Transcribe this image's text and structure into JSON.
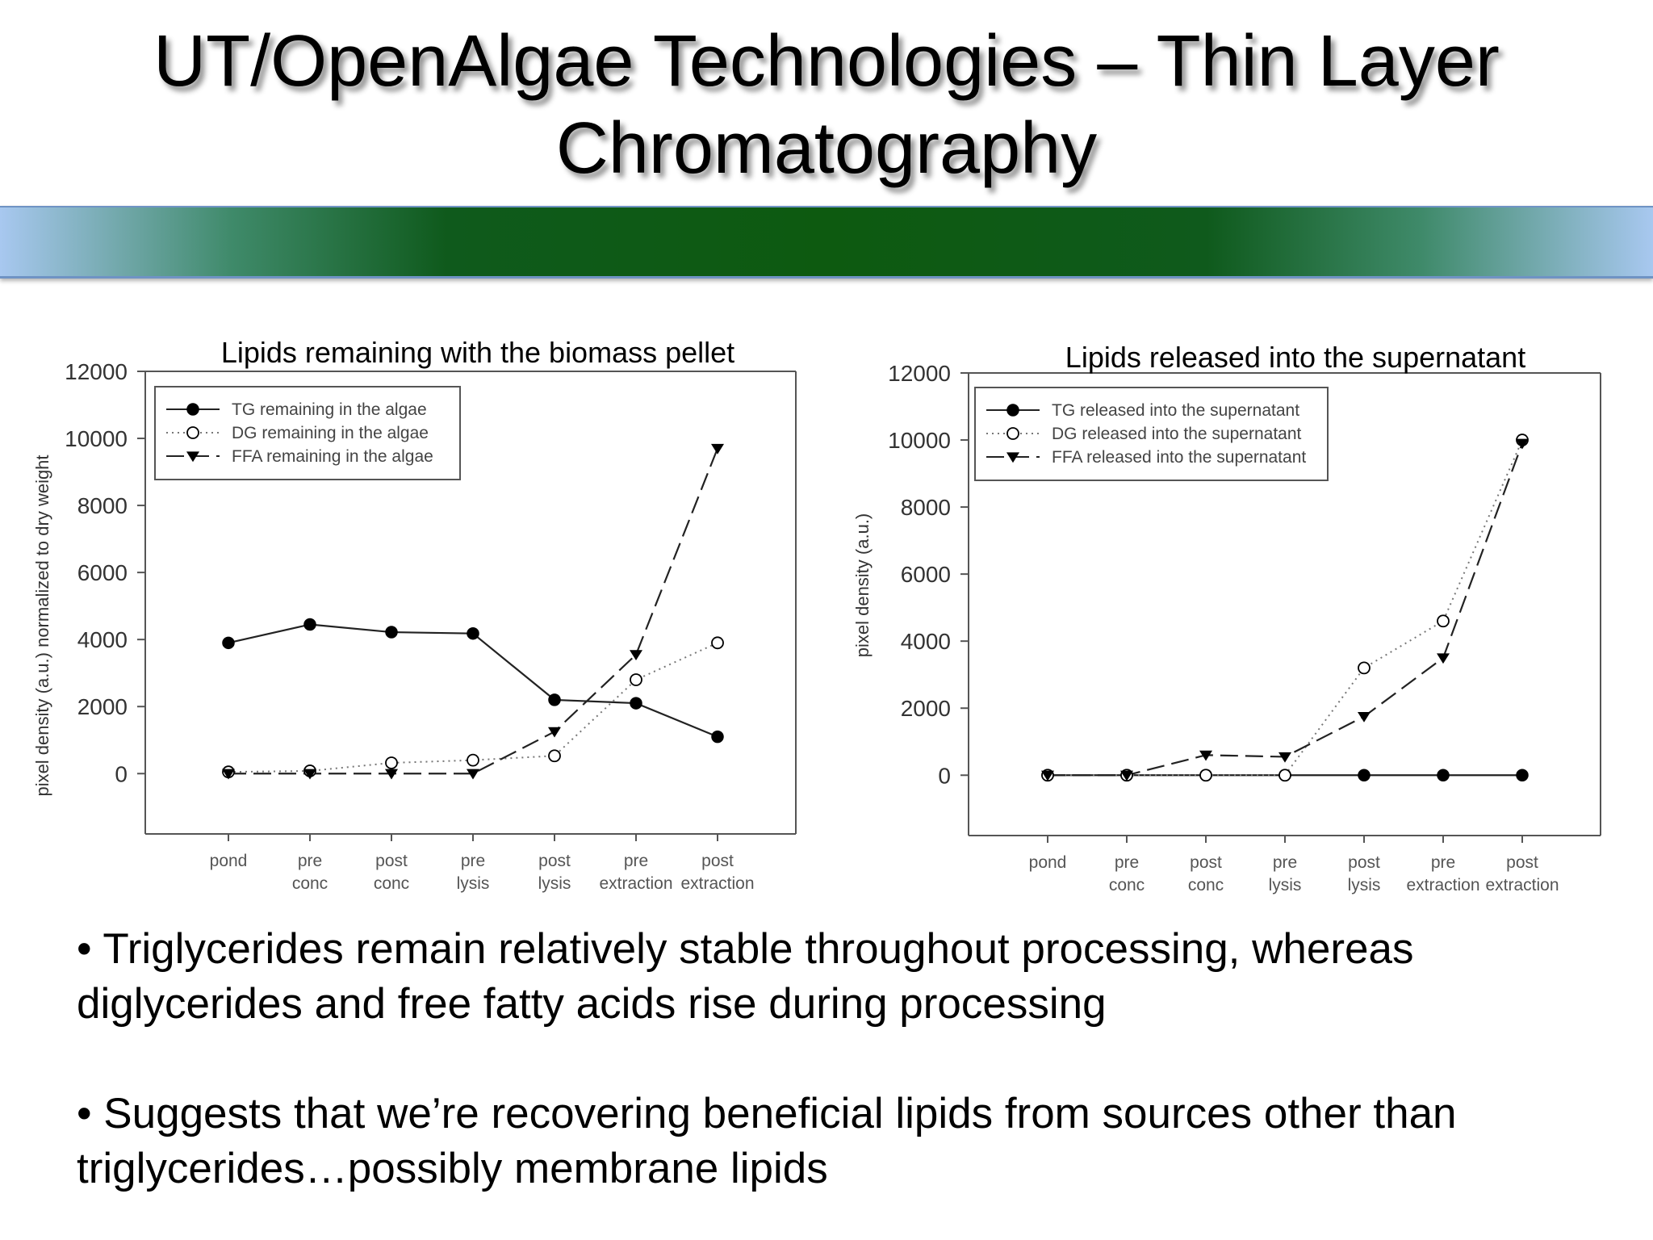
{
  "slide": {
    "title_line1": "UT/OpenAlgae Technologies – Thin Layer",
    "title_line2": "Chromatography",
    "band_colors": [
      "#a8c8f0",
      "#0d5a10"
    ]
  },
  "bullets": [
    "• Triglycerides remain relatively stable throughout processing, whereas diglycerides and free fatty acids rise during processing",
    "• Suggests that we’re recovering beneficial lipids from sources other than triglycerides…possibly membrane lipids"
  ],
  "chart_data": [
    {
      "type": "line",
      "title": "Lipids remaining with the biomass pellet",
      "xlabel": "",
      "ylabel": "pixel density (a.u.) normalized to dry weight",
      "categories": [
        [
          "pond"
        ],
        [
          "pre",
          "conc"
        ],
        [
          "post",
          "conc"
        ],
        [
          "pre",
          "lysis"
        ],
        [
          "post",
          "lysis"
        ],
        [
          "pre",
          "extraction"
        ],
        [
          "post",
          "extraction"
        ]
      ],
      "yticks": [
        0,
        2000,
        4000,
        6000,
        8000,
        10000,
        12000
      ],
      "ylim": [
        -1800,
        12000
      ],
      "grid": false,
      "legend_position": "top-left",
      "series": [
        {
          "name": "TG remaining in the algae",
          "marker": "filled-circle",
          "line": "solid",
          "values": [
            3900,
            4450,
            4220,
            4180,
            2200,
            2100,
            1100
          ]
        },
        {
          "name": "DG remaining in the algae",
          "marker": "open-circle",
          "line": "dotted",
          "values": [
            50,
            80,
            320,
            400,
            530,
            2800,
            3900
          ]
        },
        {
          "name": "FFA remaining in the algae",
          "marker": "filled-triangle-down",
          "line": "dashed",
          "values": [
            0,
            0,
            0,
            0,
            1250,
            3550,
            9700
          ]
        }
      ]
    },
    {
      "type": "line",
      "title": "Lipids released into the supernatant",
      "xlabel": "",
      "ylabel": "pixel density (a.u.)",
      "categories": [
        [
          "pond"
        ],
        [
          "pre",
          "conc"
        ],
        [
          "post",
          "conc"
        ],
        [
          "pre",
          "lysis"
        ],
        [
          "post",
          "lysis"
        ],
        [
          "pre",
          "extraction"
        ],
        [
          "post",
          "extraction"
        ]
      ],
      "yticks": [
        0,
        2000,
        4000,
        6000,
        8000,
        10000,
        12000
      ],
      "ylim": [
        -1800,
        12000
      ],
      "grid": false,
      "legend_position": "top-left",
      "series": [
        {
          "name": "TG released into the supernatant",
          "marker": "filled-circle",
          "line": "solid",
          "values": [
            0,
            0,
            0,
            0,
            0,
            0,
            0
          ]
        },
        {
          "name": "DG released into the supernatant",
          "marker": "open-circle",
          "line": "dotted",
          "values": [
            0,
            0,
            0,
            0,
            3200,
            4600,
            10000
          ]
        },
        {
          "name": "FFA released into the supernatant",
          "marker": "filled-triangle-down",
          "line": "dashed",
          "values": [
            0,
            0,
            600,
            550,
            1750,
            3500,
            9900
          ]
        }
      ]
    }
  ]
}
